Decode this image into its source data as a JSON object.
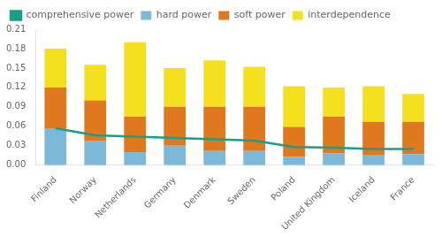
{
  "chart_data": {
    "type": "bar",
    "categories": [
      "Finland",
      "Norway",
      "Netherlands",
      "Germany",
      "Denmark",
      "Sweden",
      "Poland",
      "United Kingdom",
      "Iceland",
      "France"
    ],
    "series": [
      {
        "name": "hard power",
        "type": "bar",
        "color": "#7cb9d8",
        "values": [
          0.057,
          0.038,
          0.02,
          0.03,
          0.022,
          0.022,
          0.013,
          0.018,
          0.015,
          0.017
        ]
      },
      {
        "name": "soft power",
        "type": "bar",
        "color": "#e07820",
        "values": [
          0.063,
          0.062,
          0.055,
          0.06,
          0.068,
          0.068,
          0.046,
          0.057,
          0.052,
          0.05
        ]
      },
      {
        "name": "interdependence",
        "type": "bar",
        "color": "#f5e020",
        "values": [
          0.06,
          0.055,
          0.115,
          0.06,
          0.072,
          0.062,
          0.063,
          0.045,
          0.055,
          0.043
        ]
      },
      {
        "name": "comprehensive power",
        "type": "line",
        "color": "#1a9e8a",
        "values": [
          0.057,
          0.046,
          0.044,
          0.042,
          0.04,
          0.038,
          0.028,
          0.027,
          0.025,
          0.025
        ]
      }
    ],
    "stacked": true,
    "ylim": [
      0.0,
      0.21
    ],
    "yticks": [
      {
        "value": 0.0,
        "label": "0.00"
      },
      0.03,
      0.06,
      0.09,
      0.12,
      0.15,
      0.18,
      0.21
    ],
    "grid": false,
    "legend": "upper left"
  }
}
